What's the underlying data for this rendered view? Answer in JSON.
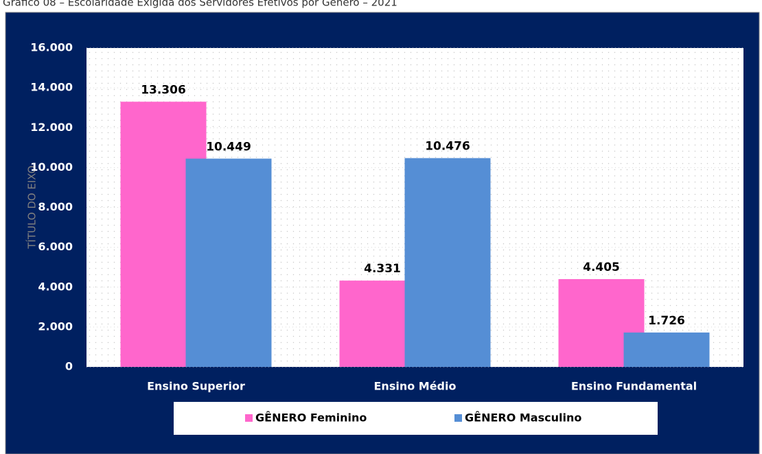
{
  "chart_data": {
    "type": "bar",
    "title": "Gráfico 08 – Escolaridade Exigida dos Servidores Efetivos por Gênero – 2021",
    "y_label": "TÍTULO DO EIXO",
    "categories": [
      "Ensino Superior",
      "Ensino Médio",
      "Ensino Fundamental"
    ],
    "series": [
      {
        "name": "GÊNERO Feminino",
        "color": "#ff66cc",
        "values": [
          13306,
          4331,
          4405
        ],
        "value_labels": [
          "13.306",
          "4.331",
          "4.405"
        ]
      },
      {
        "name": "GÊNERO Masculino",
        "color": "#558ed5",
        "values": [
          10449,
          10476,
          1726
        ],
        "value_labels": [
          "10.449",
          "10.476",
          "1.726"
        ]
      }
    ],
    "ylim": [
      0,
      16000
    ],
    "yticks": [
      0,
      {
        "value": 2000,
        "label": "2.000"
      },
      {
        "value": 4000,
        "label": "4.000"
      },
      {
        "value": 6000,
        "label": "6.000"
      },
      {
        "value": 8000,
        "label": "8.000"
      },
      {
        "value": 10000,
        "label": "10.000"
      },
      {
        "value": 12000,
        "label": "12.000"
      },
      {
        "value": 14000,
        "label": "14.000"
      },
      {
        "value": 16000,
        "label": "16.000"
      }
    ],
    "grid": true,
    "legend": "bottom"
  }
}
